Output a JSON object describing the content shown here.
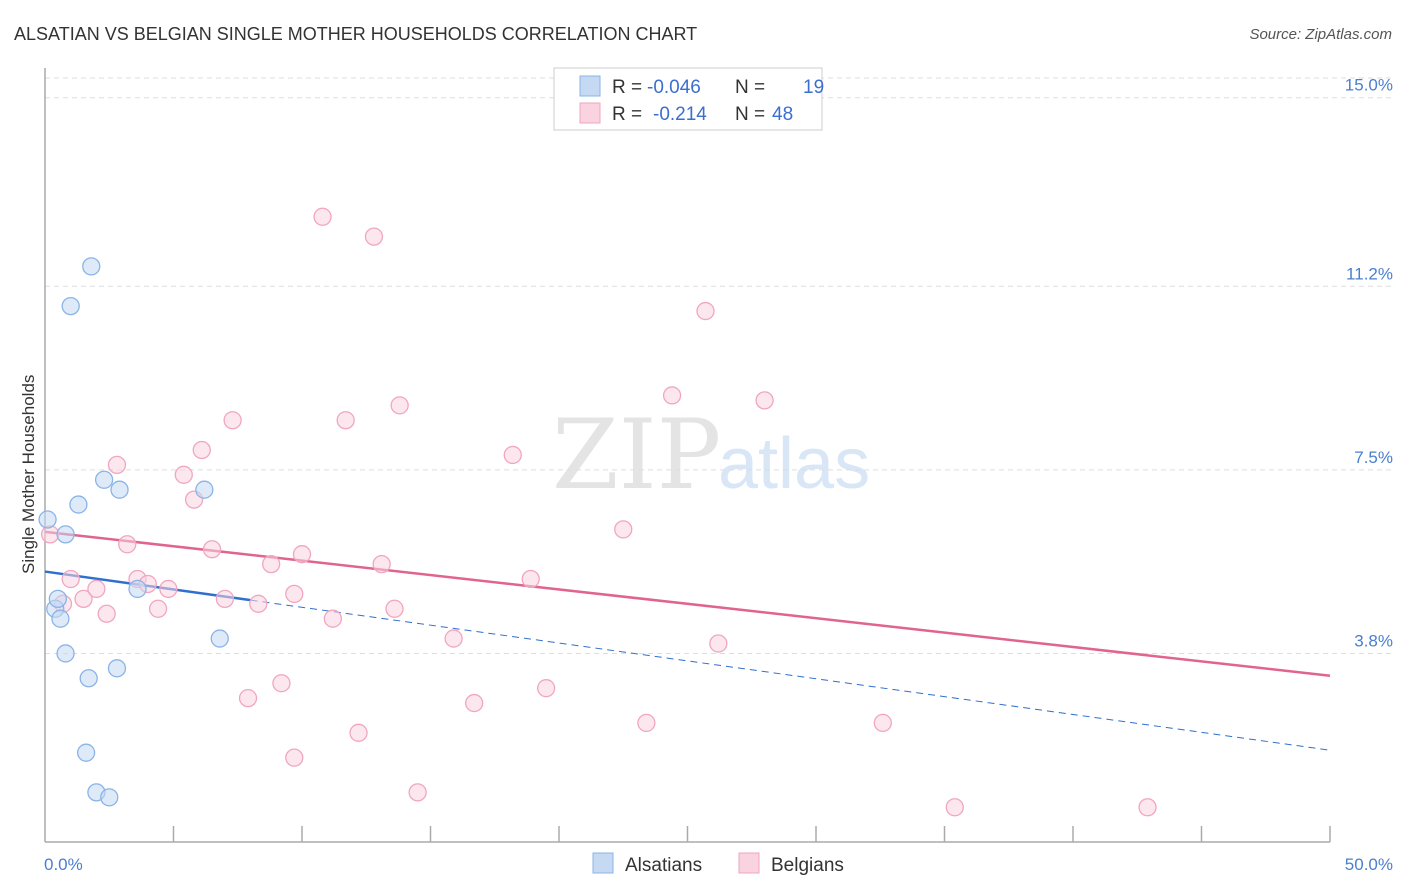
{
  "chart_data": {
    "type": "scatter",
    "title": "ALSATIAN VS BELGIAN SINGLE MOTHER HOUSEHOLDS CORRELATION CHART",
    "source": "Source: ZipAtlas.com",
    "ylabel": "Single Mother Households",
    "xlim": [
      0,
      50
    ],
    "ylim": [
      0,
      15.8
    ],
    "y_ticks": [
      {
        "value": 15.0,
        "label": "15.0%"
      },
      {
        "value": 11.2,
        "label": "11.2%"
      },
      {
        "value": 7.5,
        "label": "7.5%"
      },
      {
        "value": 3.8,
        "label": "3.8%"
      }
    ],
    "x_tick_labels": {
      "left": "0.0%",
      "right": "50.0%"
    },
    "watermark": {
      "part1": "ZIP",
      "part2": "atlas"
    },
    "legend": {
      "rows": [
        {
          "r_label": "R =",
          "r_value": "-0.046",
          "n_label": "N =",
          "n_value": "19"
        },
        {
          "r_label": "R =",
          "r_value": "-0.214",
          "n_label": "N =",
          "n_value": "48"
        }
      ]
    },
    "series": [
      {
        "name": "Alsatians",
        "color": "#8ab4e8",
        "fill": "#c5d9f3",
        "line_color": "#2f6fcf",
        "trend": {
          "x0": 0,
          "y0": 5.45,
          "x1": 50,
          "y1": 1.85,
          "solid_until": 8
        },
        "points": [
          [
            0.1,
            6.5
          ],
          [
            0.4,
            4.7
          ],
          [
            0.5,
            4.9
          ],
          [
            0.6,
            4.5
          ],
          [
            0.8,
            6.2
          ],
          [
            0.8,
            3.8
          ],
          [
            1.0,
            10.8
          ],
          [
            1.3,
            6.8
          ],
          [
            1.7,
            3.3
          ],
          [
            1.6,
            1.8
          ],
          [
            1.8,
            11.6
          ],
          [
            2.0,
            1.0
          ],
          [
            2.3,
            7.3
          ],
          [
            2.5,
            0.9
          ],
          [
            2.8,
            3.5
          ],
          [
            2.9,
            7.1
          ],
          [
            3.6,
            5.1
          ],
          [
            6.2,
            7.1
          ],
          [
            6.8,
            4.1
          ]
        ]
      },
      {
        "name": "Belgians",
        "color": "#f1a6bf",
        "fill": "#f9d3e0",
        "line_color": "#e0648d",
        "trend": {
          "x0": 0,
          "y0": 6.25,
          "x1": 50,
          "y1": 3.35
        },
        "points": [
          [
            0.2,
            6.2
          ],
          [
            0.7,
            4.8
          ],
          [
            1.0,
            5.3
          ],
          [
            1.5,
            4.9
          ],
          [
            2.0,
            5.1
          ],
          [
            2.4,
            4.6
          ],
          [
            2.8,
            7.6
          ],
          [
            3.2,
            6.0
          ],
          [
            3.6,
            5.3
          ],
          [
            4.0,
            5.2
          ],
          [
            4.4,
            4.7
          ],
          [
            4.8,
            5.1
          ],
          [
            5.4,
            7.4
          ],
          [
            5.8,
            6.9
          ],
          [
            6.1,
            7.9
          ],
          [
            6.5,
            5.9
          ],
          [
            7.0,
            4.9
          ],
          [
            7.3,
            8.5
          ],
          [
            7.9,
            2.9
          ],
          [
            8.3,
            4.8
          ],
          [
            8.8,
            5.6
          ],
          [
            9.2,
            3.2
          ],
          [
            9.7,
            1.7
          ],
          [
            9.7,
            5.0
          ],
          [
            10.0,
            5.8
          ],
          [
            10.8,
            12.6
          ],
          [
            11.2,
            4.5
          ],
          [
            11.7,
            8.5
          ],
          [
            12.2,
            2.2
          ],
          [
            12.8,
            12.2
          ],
          [
            13.1,
            5.6
          ],
          [
            13.8,
            8.8
          ],
          [
            13.6,
            4.7
          ],
          [
            14.5,
            1.0
          ],
          [
            15.9,
            4.1
          ],
          [
            16.7,
            2.8
          ],
          [
            18.2,
            7.8
          ],
          [
            18.9,
            5.3
          ],
          [
            19.5,
            3.1
          ],
          [
            22.5,
            6.3
          ],
          [
            23.4,
            2.4
          ],
          [
            24.4,
            9.0
          ],
          [
            25.7,
            10.7
          ],
          [
            26.2,
            4.0
          ],
          [
            28.0,
            8.9
          ],
          [
            32.6,
            2.4
          ],
          [
            35.4,
            0.7
          ],
          [
            42.9,
            0.7
          ]
        ]
      }
    ]
  }
}
